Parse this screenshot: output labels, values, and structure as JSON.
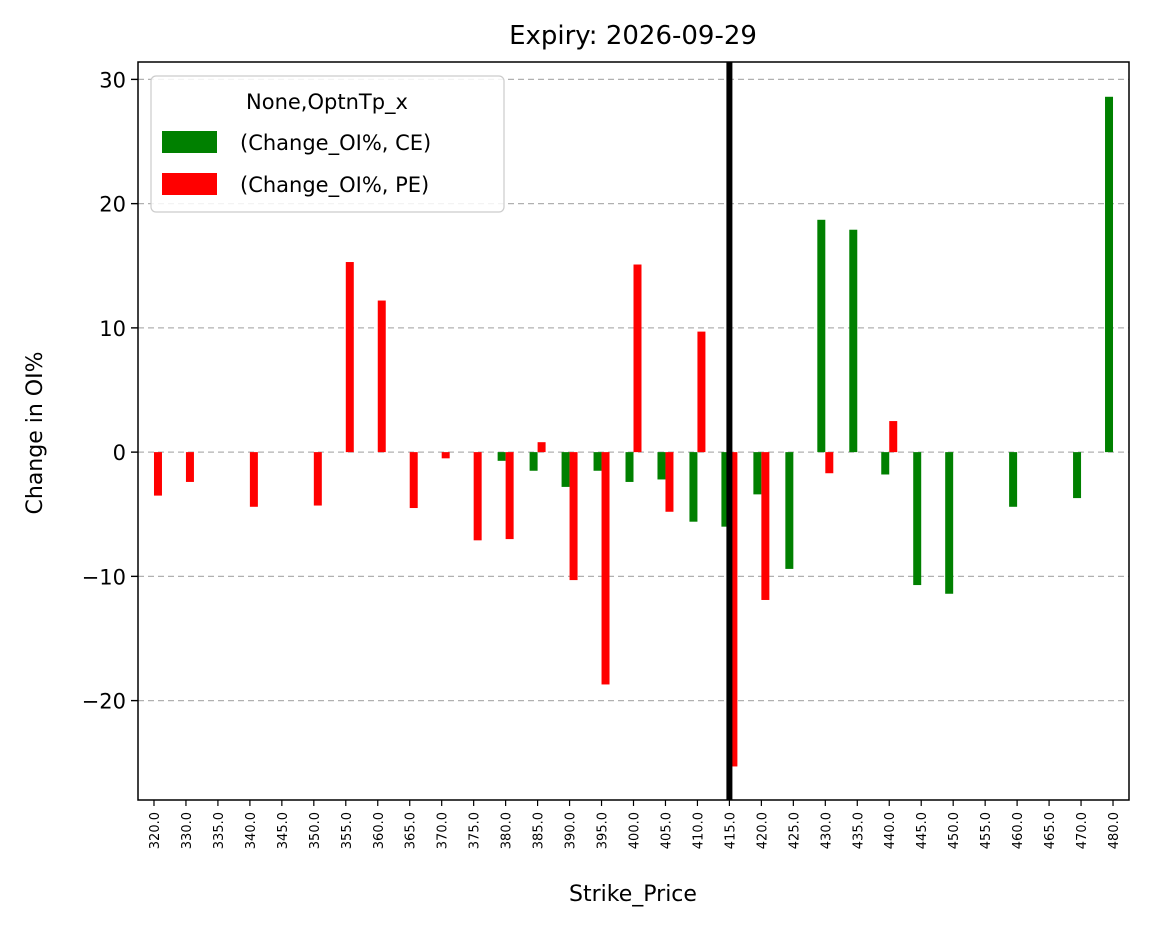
{
  "chart_data": {
    "type": "bar",
    "title": "Expiry: 2026-09-29",
    "xlabel": "Strike_Price",
    "ylabel": "Change in OI%",
    "ylim": [
      -28,
      31.4
    ],
    "yticks": [
      30,
      20,
      10,
      0,
      -10,
      -20
    ],
    "ytick_labels": [
      "30",
      "20",
      "10",
      "0",
      "−10",
      "−20"
    ],
    "grid": "horizontal dashed",
    "categories": [
      "320.0",
      "330.0",
      "335.0",
      "340.0",
      "345.0",
      "350.0",
      "355.0",
      "360.0",
      "365.0",
      "370.0",
      "375.0",
      "380.0",
      "385.0",
      "390.0",
      "395.0",
      "400.0",
      "405.0",
      "410.0",
      "415.0",
      "420.0",
      "425.0",
      "430.0",
      "435.0",
      "440.0",
      "445.0",
      "450.0",
      "455.0",
      "460.0",
      "465.0",
      "470.0",
      "480.0"
    ],
    "series": [
      {
        "name": "(Change_OI%, CE)",
        "color": "#008000",
        "values": [
          0,
          0,
          0,
          0,
          0,
          0,
          0,
          0,
          0,
          0,
          0,
          -0.7,
          -1.5,
          -2.8,
          -1.5,
          -2.4,
          -2.2,
          -5.6,
          -6,
          -3.4,
          -9.4,
          18.7,
          17.9,
          -1.8,
          -10.7,
          -11.4,
          0,
          -4.4,
          0,
          -3.7,
          28.6
        ]
      },
      {
        "name": "(Change_OI%, PE)",
        "color": "#ff0000",
        "values": [
          -3.5,
          -2.4,
          0,
          -4.4,
          0,
          -4.3,
          15.3,
          12.2,
          -4.5,
          -0.5,
          -7.1,
          -7,
          0.8,
          -10.3,
          -18.7,
          15.1,
          -4.8,
          9.7,
          -25.3,
          -11.9,
          0,
          -1.7,
          0,
          2.5,
          0,
          0,
          0,
          0,
          0,
          0,
          0
        ]
      }
    ],
    "vertical_line": {
      "at_category": "415.0",
      "color": "#000000"
    },
    "legend": {
      "title": "None,OptnTp_x",
      "placement": "upper-left",
      "entries": [
        "(Change_OI%, CE)",
        "(Change_OI%, PE)"
      ]
    }
  }
}
